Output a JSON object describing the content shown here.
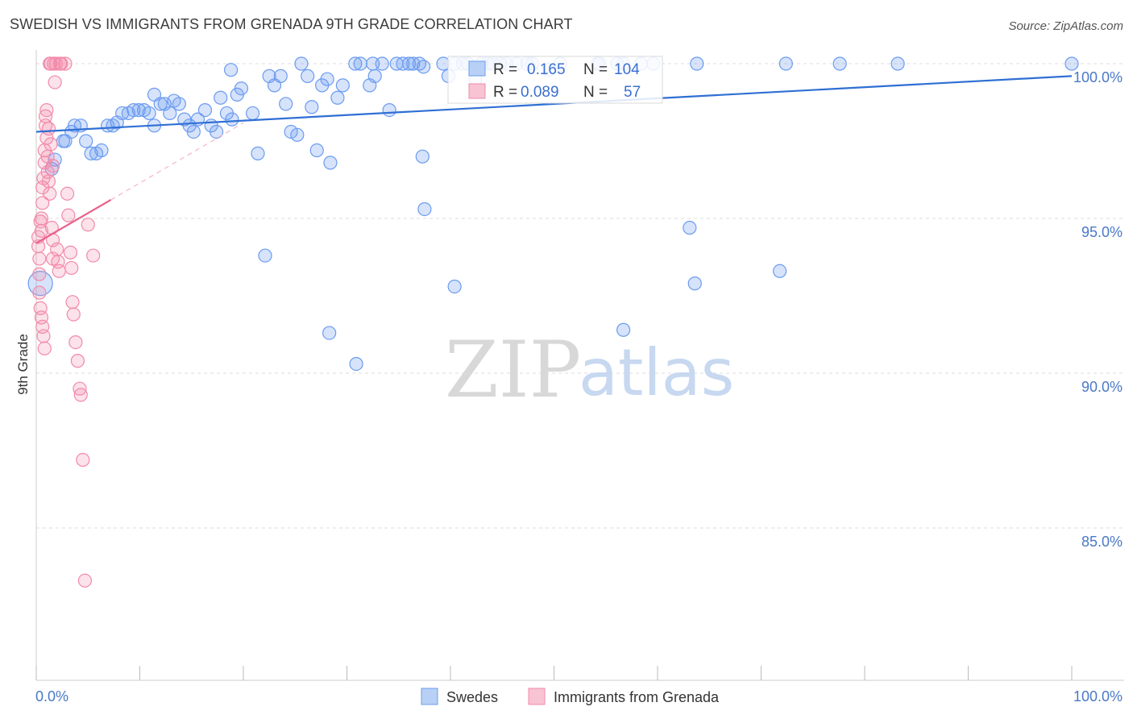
{
  "title": "SWEDISH VS IMMIGRANTS FROM GRENADA 9TH GRADE CORRELATION CHART",
  "source": "Source: ZipAtlas.com",
  "watermark": {
    "zip": "ZIP",
    "atlas": "atlas"
  },
  "colors": {
    "swedes": "#6b9bf0",
    "swedes_line": "#2f6fd4",
    "grenada": "#f28aaa",
    "grenada_line": "#e8608a",
    "grid": "#dddddd",
    "axis_text": "#4a78c8"
  },
  "legend_box": {
    "rows": [
      {
        "r_label": "R = ",
        "r_value": "0.165",
        "n_label": "N = ",
        "n_value": "104"
      },
      {
        "r_label": "R = ",
        "r_value": "0.089",
        "n_label": "N = ",
        "n_value": "57"
      }
    ]
  },
  "chart_data": {
    "type": "scatter",
    "title": "SWEDISH VS IMMIGRANTS FROM GRENADA 9TH GRADE CORRELATION CHART",
    "xlabel": "",
    "ylabel": "9th Grade",
    "xlim": [
      0,
      100
    ],
    "ylim": [
      80,
      100.8
    ],
    "x_tick_labels": [
      "0.0%",
      "100.0%"
    ],
    "y_ticks": [
      85,
      90,
      95,
      100
    ],
    "y_tick_labels": [
      "85.0%",
      "90.0%",
      "95.0%",
      "100.0%"
    ],
    "grid": true,
    "legend_position": "bottom",
    "series": [
      {
        "name": "Swedes",
        "R": 0.165,
        "N": 104,
        "trend": [
          [
            0,
            97.8
          ],
          [
            100,
            99.6
          ]
        ],
        "points": [
          [
            0.4,
            92.9
          ],
          [
            1.5,
            96.6
          ],
          [
            1.8,
            96.9
          ],
          [
            2.6,
            97.5
          ],
          [
            2.8,
            97.5
          ],
          [
            3.4,
            97.8
          ],
          [
            3.7,
            98.0
          ],
          [
            4.3,
            98.0
          ],
          [
            4.8,
            97.5
          ],
          [
            5.3,
            97.1
          ],
          [
            5.8,
            97.1
          ],
          [
            6.3,
            97.2
          ],
          [
            6.9,
            98.0
          ],
          [
            7.4,
            98.0
          ],
          [
            7.8,
            98.1
          ],
          [
            8.3,
            98.4
          ],
          [
            8.9,
            98.4
          ],
          [
            9.4,
            98.5
          ],
          [
            9.9,
            98.5
          ],
          [
            10.4,
            98.5
          ],
          [
            10.9,
            98.4
          ],
          [
            11.4,
            98.0
          ],
          [
            12.0,
            98.7
          ],
          [
            12.4,
            98.7
          ],
          [
            12.9,
            98.4
          ],
          [
            13.3,
            98.8
          ],
          [
            13.8,
            98.7
          ],
          [
            14.3,
            98.2
          ],
          [
            14.8,
            98.0
          ],
          [
            15.2,
            97.8
          ],
          [
            15.6,
            98.2
          ],
          [
            16.3,
            98.5
          ],
          [
            16.9,
            98.0
          ],
          [
            17.4,
            97.8
          ],
          [
            17.8,
            98.9
          ],
          [
            18.4,
            98.4
          ],
          [
            18.9,
            98.2
          ],
          [
            19.4,
            99.0
          ],
          [
            19.8,
            99.2
          ],
          [
            20.9,
            98.4
          ],
          [
            21.4,
            97.1
          ],
          [
            22.1,
            93.8
          ],
          [
            22.5,
            99.6
          ],
          [
            23.0,
            99.3
          ],
          [
            23.6,
            99.6
          ],
          [
            24.1,
            98.7
          ],
          [
            24.6,
            97.8
          ],
          [
            25.2,
            97.7
          ],
          [
            25.6,
            100.0
          ],
          [
            26.2,
            99.6
          ],
          [
            26.6,
            98.6
          ],
          [
            27.1,
            97.2
          ],
          [
            27.6,
            99.3
          ],
          [
            28.1,
            99.5
          ],
          [
            28.4,
            96.8
          ],
          [
            29.1,
            98.9
          ],
          [
            29.6,
            99.3
          ],
          [
            30.8,
            100.0
          ],
          [
            31.3,
            100.0
          ],
          [
            32.2,
            99.3
          ],
          [
            32.5,
            100.0
          ],
          [
            32.7,
            99.6
          ],
          [
            33.4,
            100.0
          ],
          [
            34.1,
            98.5
          ],
          [
            34.8,
            100.0
          ],
          [
            35.4,
            100.0
          ],
          [
            36.0,
            100.0
          ],
          [
            36.4,
            100.0
          ],
          [
            37.0,
            100.0
          ],
          [
            37.3,
            97.0
          ],
          [
            37.4,
            99.9
          ],
          [
            37.5,
            95.3
          ],
          [
            39.3,
            100.0
          ],
          [
            39.8,
            99.6
          ],
          [
            40.4,
            100.0
          ],
          [
            41.2,
            100.0
          ],
          [
            41.7,
            100.0
          ],
          [
            42.4,
            99.5
          ],
          [
            43.0,
            100.0
          ],
          [
            43.6,
            100.0
          ],
          [
            44.1,
            100.0
          ],
          [
            44.8,
            100.0
          ],
          [
            45.4,
            100.0
          ],
          [
            46.4,
            100.0
          ],
          [
            47.4,
            100.0
          ],
          [
            47.9,
            100.0
          ],
          [
            49.5,
            99.8
          ],
          [
            50.6,
            100.0
          ],
          [
            54.2,
            100.0
          ],
          [
            56.1,
            100.0
          ],
          [
            56.7,
            100.0
          ],
          [
            58.4,
            100.0
          ],
          [
            59.6,
            100.0
          ],
          [
            63.1,
            94.7
          ],
          [
            63.6,
            92.9
          ],
          [
            63.8,
            100.0
          ],
          [
            71.8,
            93.3
          ],
          [
            72.4,
            100.0
          ],
          [
            77.6,
            100.0
          ],
          [
            83.2,
            100.0
          ],
          [
            100.0,
            100.0
          ],
          [
            40.4,
            92.8
          ],
          [
            54.4,
            100.0
          ],
          [
            28.3,
            91.3
          ],
          [
            30.9,
            90.3
          ],
          [
            56.7,
            91.4
          ],
          [
            11.4,
            99.0
          ],
          [
            18.8,
            99.8
          ]
        ]
      },
      {
        "name": "Immigrants from Grenada",
        "R": 0.089,
        "N": 57,
        "trend": [
          [
            0,
            94.2
          ],
          [
            7.2,
            95.6
          ]
        ],
        "points": [
          [
            0.2,
            94.4
          ],
          [
            0.2,
            94.1
          ],
          [
            0.3,
            93.7
          ],
          [
            0.3,
            93.2
          ],
          [
            0.4,
            94.9
          ],
          [
            0.5,
            95.0
          ],
          [
            0.5,
            94.6
          ],
          [
            0.6,
            95.5
          ],
          [
            0.6,
            96.0
          ],
          [
            0.7,
            96.3
          ],
          [
            0.8,
            96.8
          ],
          [
            0.8,
            97.2
          ],
          [
            0.9,
            98.3
          ],
          [
            0.9,
            98.0
          ],
          [
            1.0,
            97.6
          ],
          [
            1.1,
            97.0
          ],
          [
            1.1,
            96.5
          ],
          [
            1.2,
            96.2
          ],
          [
            1.3,
            95.8
          ],
          [
            1.3,
            100.0
          ],
          [
            1.4,
            100.0
          ],
          [
            1.5,
            94.7
          ],
          [
            1.6,
            94.3
          ],
          [
            1.6,
            93.7
          ],
          [
            1.7,
            100.0
          ],
          [
            1.8,
            99.4
          ],
          [
            1.9,
            100.0
          ],
          [
            2.0,
            94.0
          ],
          [
            2.1,
            93.6
          ],
          [
            2.2,
            93.3
          ],
          [
            2.3,
            100.0
          ],
          [
            2.4,
            100.0
          ],
          [
            2.8,
            100.0
          ],
          [
            3.0,
            95.8
          ],
          [
            3.1,
            95.1
          ],
          [
            3.3,
            93.9
          ],
          [
            3.4,
            93.4
          ],
          [
            3.5,
            92.3
          ],
          [
            3.6,
            91.9
          ],
          [
            3.8,
            91.0
          ],
          [
            4.0,
            90.4
          ],
          [
            4.2,
            89.5
          ],
          [
            4.3,
            89.3
          ],
          [
            4.5,
            87.2
          ],
          [
            4.7,
            83.3
          ],
          [
            5.0,
            94.8
          ],
          [
            5.5,
            93.8
          ],
          [
            0.3,
            92.6
          ],
          [
            0.4,
            92.1
          ],
          [
            0.5,
            91.8
          ],
          [
            0.6,
            91.5
          ],
          [
            0.7,
            91.2
          ],
          [
            0.8,
            90.8
          ],
          [
            1.0,
            98.5
          ],
          [
            1.2,
            97.9
          ],
          [
            1.4,
            97.4
          ],
          [
            1.6,
            96.7
          ]
        ]
      }
    ]
  },
  "bottom_legend": [
    {
      "label": "Swedes"
    },
    {
      "label": "Immigrants from Grenada"
    }
  ]
}
